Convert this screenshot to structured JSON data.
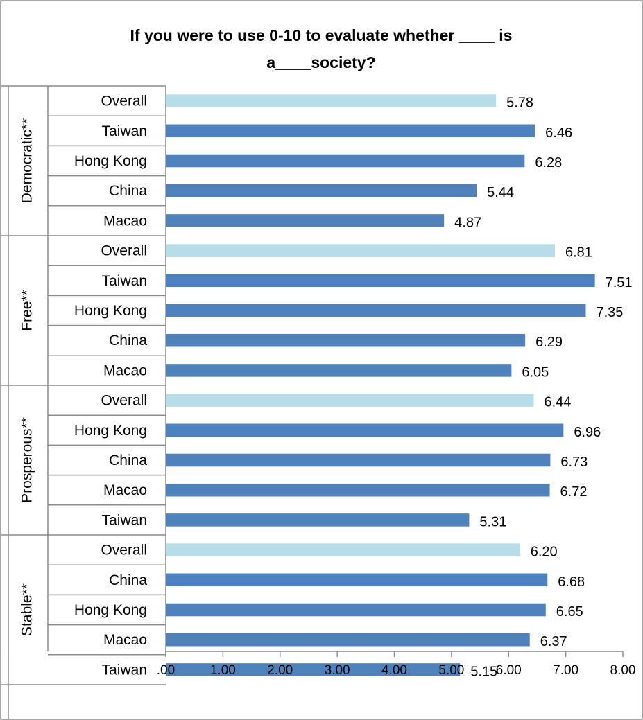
{
  "chart_data": {
    "type": "bar",
    "orientation": "horizontal",
    "title": "If you were to use 0-10 to evaluate whether ____ is a____society?",
    "title_lines": [
      "If you were to use 0-10 to evaluate whether ____ is",
      "a____society?"
    ],
    "xlim": [
      0,
      8
    ],
    "x_ticks": [
      ".00",
      "1.00",
      "2.00",
      "3.00",
      "4.00",
      "5.00",
      "6.00",
      "7.00",
      "8.00"
    ],
    "x_tick_values": [
      0,
      1,
      2,
      3,
      4,
      5,
      6,
      7,
      8
    ],
    "grid": false,
    "legend": "none",
    "colors": {
      "overall": "#b7dde8",
      "country": "#4f81bd",
      "axis": "#8c8c8c"
    },
    "groups": [
      {
        "name": "Democratic**",
        "categories": [
          "Overall",
          "Taiwan",
          "Hong Kong",
          "China",
          "Macao"
        ],
        "values": [
          5.78,
          6.46,
          6.28,
          5.44,
          4.87
        ],
        "labels": [
          "5.78",
          "6.46",
          "6.28",
          "5.44",
          "4.87"
        ]
      },
      {
        "name": "Free**",
        "categories": [
          "Overall",
          "Taiwan",
          "Hong Kong",
          "China",
          "Macao"
        ],
        "values": [
          6.81,
          7.51,
          7.35,
          6.29,
          6.05
        ],
        "labels": [
          "6.81",
          "7.51",
          "7.35",
          "6.29",
          "6.05"
        ]
      },
      {
        "name": "Prosperous**",
        "categories": [
          "Overall",
          "Hong Kong",
          "China",
          "Macao",
          "Taiwan"
        ],
        "values": [
          6.44,
          6.96,
          6.73,
          6.72,
          5.31
        ],
        "labels": [
          "6.44",
          "6.96",
          "6.73",
          "6.72",
          "5.31"
        ]
      },
      {
        "name": "Stable**",
        "categories": [
          "Overall",
          "China",
          "Hong Kong",
          "Macao",
          "Taiwan"
        ],
        "values": [
          6.2,
          6.68,
          6.65,
          6.37,
          5.15
        ],
        "labels": [
          "6.20",
          "6.68",
          "6.65",
          "6.37",
          "5.15"
        ]
      }
    ]
  }
}
